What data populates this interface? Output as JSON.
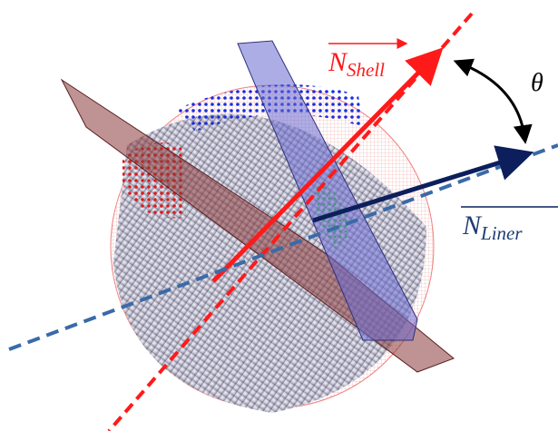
{
  "labels": {
    "shell_normal": {
      "symbol": "N",
      "subscript": "Shell"
    },
    "angle": "θ",
    "liner_normal": {
      "symbol": "N",
      "subscript": "Liner"
    }
  }
}
